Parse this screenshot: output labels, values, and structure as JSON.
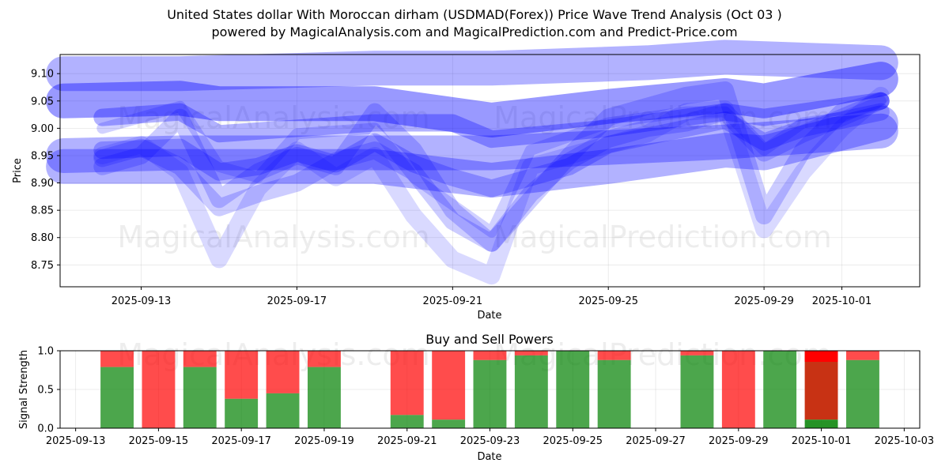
{
  "header": {
    "title": "United States dollar With Moroccan dirham (USDMAD(Forex)) Price Wave Trend Analysis (Oct 03 )",
    "subtitle": "powered by MagicalAnalysis.com and MagicalPrediction.com and Predict-Price.com"
  },
  "watermarks": [
    "MagicalAnalysis.com",
    "MagicalPrediction.com"
  ],
  "colors": {
    "wave": "#0000ff",
    "buy": "#008000",
    "sell": "#ff0000",
    "grid": "#b0b0b0"
  },
  "chart_data": [
    {
      "type": "line",
      "xlabel": "Date",
      "ylabel": "Price",
      "x_start": "2025-09-11",
      "x_end": "2025-10-03",
      "xlim": [
        "2025-09-10T22:00",
        "2025-10-03T00:00"
      ],
      "ylim": [
        8.71,
        9.135
      ],
      "x_ticks": [
        "2025-09-13",
        "2025-09-17",
        "2025-09-21",
        "2025-09-25",
        "2025-09-29",
        "2025-10-01"
      ],
      "y_ticks": [
        8.75,
        8.8,
        8.85,
        8.9,
        8.95,
        9.0,
        9.05,
        9.1
      ],
      "series": [
        {
          "width": 44,
          "opacity": 0.3,
          "points": [
            [
              "2025-09-11",
              9.1
            ],
            [
              "2025-09-14",
              9.1
            ],
            [
              "2025-09-19",
              9.11
            ],
            [
              "2025-09-22",
              9.11
            ],
            [
              "2025-09-26",
              9.12
            ],
            [
              "2025-09-28",
              9.13
            ],
            [
              "2025-10-02",
              9.12
            ]
          ]
        },
        {
          "width": 44,
          "opacity": 0.4,
          "points": [
            [
              "2025-09-11",
              9.05
            ],
            [
              "2025-09-14",
              9.055
            ],
            [
              "2025-09-15",
              9.045
            ],
            [
              "2025-09-19",
              9.045
            ],
            [
              "2025-09-22",
              9.015
            ],
            [
              "2025-09-25",
              9.04
            ],
            [
              "2025-09-28",
              9.06
            ],
            [
              "2025-09-29",
              9.05
            ],
            [
              "2025-10-02",
              9.09
            ]
          ]
        },
        {
          "width": 44,
          "opacity": 0.3,
          "points": [
            [
              "2025-09-11",
              8.95
            ],
            [
              "2025-09-14",
              8.955
            ],
            [
              "2025-09-19",
              8.955
            ],
            [
              "2025-09-22",
              8.955
            ],
            [
              "2025-09-25",
              8.965
            ],
            [
              "2025-09-28",
              8.975
            ],
            [
              "2025-10-02",
              8.995
            ]
          ]
        },
        {
          "width": 44,
          "opacity": 0.3,
          "points": [
            [
              "2025-09-11",
              8.93
            ],
            [
              "2025-09-13",
              8.93
            ],
            [
              "2025-09-19",
              8.93
            ],
            [
              "2025-09-22",
              8.905
            ],
            [
              "2025-09-25",
              8.93
            ],
            [
              "2025-09-28",
              8.96
            ],
            [
              "2025-09-29",
              8.955
            ],
            [
              "2025-10-02",
              9.01
            ]
          ]
        },
        {
          "width": 22,
          "opacity": 0.3,
          "points": [
            [
              "2025-09-12",
              9.02
            ],
            [
              "2025-09-14",
              9.03
            ],
            [
              "2025-09-15",
              8.99
            ],
            [
              "2025-09-19",
              9.01
            ],
            [
              "2025-09-21",
              9.01
            ],
            [
              "2025-09-22",
              8.98
            ],
            [
              "2025-09-25",
              9.0
            ],
            [
              "2025-09-28",
              9.03
            ],
            [
              "2025-09-29",
              9.02
            ],
            [
              "2025-10-02",
              9.05
            ]
          ]
        },
        {
          "width": 22,
          "opacity": 0.25,
          "points": [
            [
              "2025-09-12",
              8.96
            ],
            [
              "2025-09-14",
              8.965
            ],
            [
              "2025-09-15",
              8.92
            ],
            [
              "2025-09-16",
              8.93
            ],
            [
              "2025-09-17",
              8.955
            ],
            [
              "2025-09-18",
              8.935
            ],
            [
              "2025-09-19",
              8.975
            ],
            [
              "2025-09-20",
              8.935
            ],
            [
              "2025-09-21",
              8.91
            ],
            [
              "2025-09-22",
              8.89
            ],
            [
              "2025-09-24",
              8.93
            ],
            [
              "2025-09-25",
              8.97
            ],
            [
              "2025-09-27",
              9.0
            ],
            [
              "2025-09-28",
              9.015
            ],
            [
              "2025-09-29",
              8.975
            ],
            [
              "2025-09-30",
              9.0
            ],
            [
              "2025-10-02",
              9.03
            ]
          ]
        },
        {
          "width": 22,
          "opacity": 0.2,
          "points": [
            [
              "2025-09-12",
              8.945
            ],
            [
              "2025-09-13",
              8.965
            ],
            [
              "2025-09-14",
              8.93
            ],
            [
              "2025-09-15",
              8.855
            ],
            [
              "2025-09-16",
              8.88
            ],
            [
              "2025-09-17",
              8.9
            ],
            [
              "2025-09-18",
              8.94
            ],
            [
              "2025-09-19",
              8.96
            ],
            [
              "2025-09-20",
              8.92
            ],
            [
              "2025-09-21",
              8.83
            ],
            [
              "2025-09-22",
              8.79
            ],
            [
              "2025-09-23",
              8.88
            ],
            [
              "2025-09-24",
              8.94
            ],
            [
              "2025-09-25",
              8.98
            ],
            [
              "2025-09-26",
              9.0
            ],
            [
              "2025-09-27",
              9.01
            ],
            [
              "2025-09-28",
              9.03
            ],
            [
              "2025-09-29",
              8.955
            ],
            [
              "2025-09-30",
              8.99
            ],
            [
              "2025-10-01",
              9.02
            ],
            [
              "2025-10-02",
              9.05
            ]
          ]
        },
        {
          "width": 22,
          "opacity": 0.15,
          "points": [
            [
              "2025-09-12",
              8.95
            ],
            [
              "2025-09-13",
              8.97
            ],
            [
              "2025-09-14",
              8.92
            ],
            [
              "2025-09-15",
              8.76
            ],
            [
              "2025-09-16",
              8.89
            ],
            [
              "2025-09-17",
              8.96
            ],
            [
              "2025-09-18",
              8.91
            ],
            [
              "2025-09-19",
              8.95
            ],
            [
              "2025-09-20",
              8.84
            ],
            [
              "2025-09-21",
              8.76
            ],
            [
              "2025-09-22",
              8.73
            ],
            [
              "2025-09-23",
              8.93
            ],
            [
              "2025-09-24",
              8.95
            ],
            [
              "2025-09-25",
              8.97
            ],
            [
              "2025-09-26",
              8.99
            ],
            [
              "2025-09-27",
              9.03
            ],
            [
              "2025-09-28",
              9.035
            ],
            [
              "2025-09-29",
              8.815
            ],
            [
              "2025-09-30",
              8.92
            ],
            [
              "2025-10-01",
              9.0
            ],
            [
              "2025-10-02",
              9.06
            ]
          ]
        },
        {
          "width": 22,
          "opacity": 0.2,
          "points": [
            [
              "2025-09-12",
              8.93
            ],
            [
              "2025-09-13",
              8.95
            ],
            [
              "2025-09-14",
              9.02
            ],
            [
              "2025-09-15",
              8.87
            ],
            [
              "2025-09-16",
              8.92
            ],
            [
              "2025-09-17",
              8.95
            ],
            [
              "2025-09-18",
              8.93
            ],
            [
              "2025-09-19",
              9.03
            ],
            [
              "2025-09-20",
              8.96
            ],
            [
              "2025-09-21",
              8.85
            ],
            [
              "2025-09-22",
              8.79
            ],
            [
              "2025-09-23",
              8.87
            ],
            [
              "2025-09-24",
              8.95
            ],
            [
              "2025-09-25",
              9.02
            ],
            [
              "2025-09-26",
              9.04
            ],
            [
              "2025-09-27",
              9.06
            ],
            [
              "2025-09-28",
              9.07
            ],
            [
              "2025-09-29",
              8.84
            ],
            [
              "2025-09-30",
              8.96
            ],
            [
              "2025-10-01",
              9.03
            ],
            [
              "2025-10-02",
              9.05
            ]
          ]
        },
        {
          "width": 14,
          "opacity": 0.18,
          "points": [
            [
              "2025-09-12",
              9.0
            ],
            [
              "2025-09-14",
              9.04
            ],
            [
              "2025-09-15",
              8.93
            ],
            [
              "2025-09-16",
              8.91
            ],
            [
              "2025-09-17",
              8.99
            ],
            [
              "2025-09-19",
              9.0
            ],
            [
              "2025-09-20",
              8.91
            ],
            [
              "2025-09-21",
              8.86
            ],
            [
              "2025-09-22",
              8.81
            ],
            [
              "2025-09-23",
              8.96
            ],
            [
              "2025-09-25",
              9.01
            ],
            [
              "2025-09-27",
              9.03
            ],
            [
              "2025-09-28",
              9.03
            ],
            [
              "2025-09-29",
              8.96
            ],
            [
              "2025-09-30",
              9.01
            ],
            [
              "2025-10-01",
              9.02
            ],
            [
              "2025-10-02",
              9.05
            ]
          ]
        }
      ]
    },
    {
      "type": "bar",
      "title": "Buy and Sell Powers",
      "xlabel": "Date",
      "ylabel": "Signal Strength",
      "xlim": [
        "2025-09-12T15:00",
        "2025-10-03T09:00"
      ],
      "ylim": [
        0,
        1.0
      ],
      "x_ticks": [
        "2025-09-13",
        "2025-09-15",
        "2025-09-17",
        "2025-09-19",
        "2025-09-21",
        "2025-09-23",
        "2025-09-25",
        "2025-09-27",
        "2025-09-29",
        "2025-10-01",
        "2025-10-03"
      ],
      "y_ticks": [
        "0.0",
        "0.5",
        "1.0"
      ],
      "bars": [
        {
          "date": "2025-09-14",
          "buy": 0.79
        },
        {
          "date": "2025-09-15",
          "buy": 0.0
        },
        {
          "date": "2025-09-16",
          "buy": 0.79
        },
        {
          "date": "2025-09-17",
          "buy": 0.38
        },
        {
          "date": "2025-09-18",
          "buy": 0.45
        },
        {
          "date": "2025-09-19",
          "buy": 0.79
        },
        {
          "date": "2025-09-21",
          "buy": 0.17
        },
        {
          "date": "2025-09-22",
          "buy": 0.11
        },
        {
          "date": "2025-09-23",
          "buy": 0.88
        },
        {
          "date": "2025-09-24",
          "buy": 0.94
        },
        {
          "date": "2025-09-25",
          "buy": 1.0
        },
        {
          "date": "2025-09-26",
          "buy": 0.88
        },
        {
          "date": "2025-09-28",
          "buy": 0.94
        },
        {
          "date": "2025-09-29",
          "buy": 0.0
        },
        {
          "date": "2025-09-30",
          "buy": 1.0
        },
        {
          "date": "2025-10-01",
          "buy": 0.11,
          "strong": true
        },
        {
          "date": "2025-10-02",
          "buy": 0.88
        }
      ]
    }
  ]
}
